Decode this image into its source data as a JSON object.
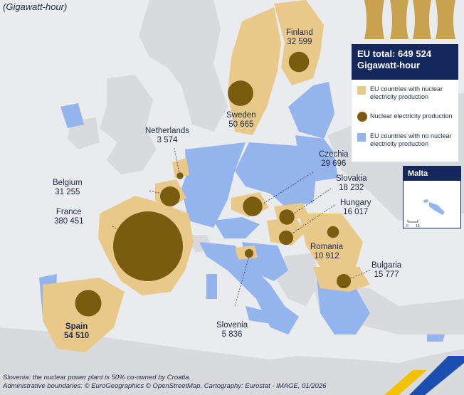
{
  "unit_label": "(Gigawatt-hour)",
  "total": {
    "line1": "EU total: 649 524",
    "line2": "Gigawatt-hour"
  },
  "legend": [
    {
      "text": "EU countries with nuclear electricity production",
      "color": "#e8c98a",
      "symbol": "square"
    },
    {
      "text": "Nuclear electricity production",
      "color": "#7a5c10",
      "symbol": "circle"
    },
    {
      "text": "EU countries with no nuclear electricity production",
      "color": "#94b4ee",
      "symbol": "square"
    }
  ],
  "inset": {
    "title": "Malta",
    "scale_ticks": [
      "0",
      "10"
    ]
  },
  "countries": [
    {
      "name": "Finland",
      "value": "32 599",
      "gwh": 32599
    },
    {
      "name": "Sweden",
      "value": "50 665",
      "gwh": 50665
    },
    {
      "name": "Netherlands",
      "value": "3 574",
      "gwh": 3574
    },
    {
      "name": "Belgium",
      "value": "31 255",
      "gwh": 31255
    },
    {
      "name": "France",
      "value": "380 451",
      "gwh": 380451
    },
    {
      "name": "Spain",
      "value": "54 510",
      "gwh": 54510
    },
    {
      "name": "Czechia",
      "value": "29 696",
      "gwh": 29696
    },
    {
      "name": "Slovakia",
      "value": "18 232",
      "gwh": 18232
    },
    {
      "name": "Hungary",
      "value": "16 017",
      "gwh": 16017
    },
    {
      "name": "Romania",
      "value": "10 912",
      "gwh": 10912
    },
    {
      "name": "Bulgaria",
      "value": "15 777",
      "gwh": 15777
    },
    {
      "name": "Slovenia",
      "value": "5 836",
      "gwh": 5836
    }
  ],
  "footnotes": [
    "Slovenia: the nuclear power plant is 50% co-owned by Croatia.",
    "Administrative boundaries: © EuroGeographics © OpenStreetMap. Cartography: Eurostat - IMAGE, 01/2026"
  ],
  "colors": {
    "nuclear_country": "#e8c98a",
    "bubble": "#7a5c10",
    "non_nuclear_country": "#94b4ee",
    "non_eu": "#d8dadd",
    "sea": "#e9ebee",
    "brand_navy": "#14285c"
  }
}
